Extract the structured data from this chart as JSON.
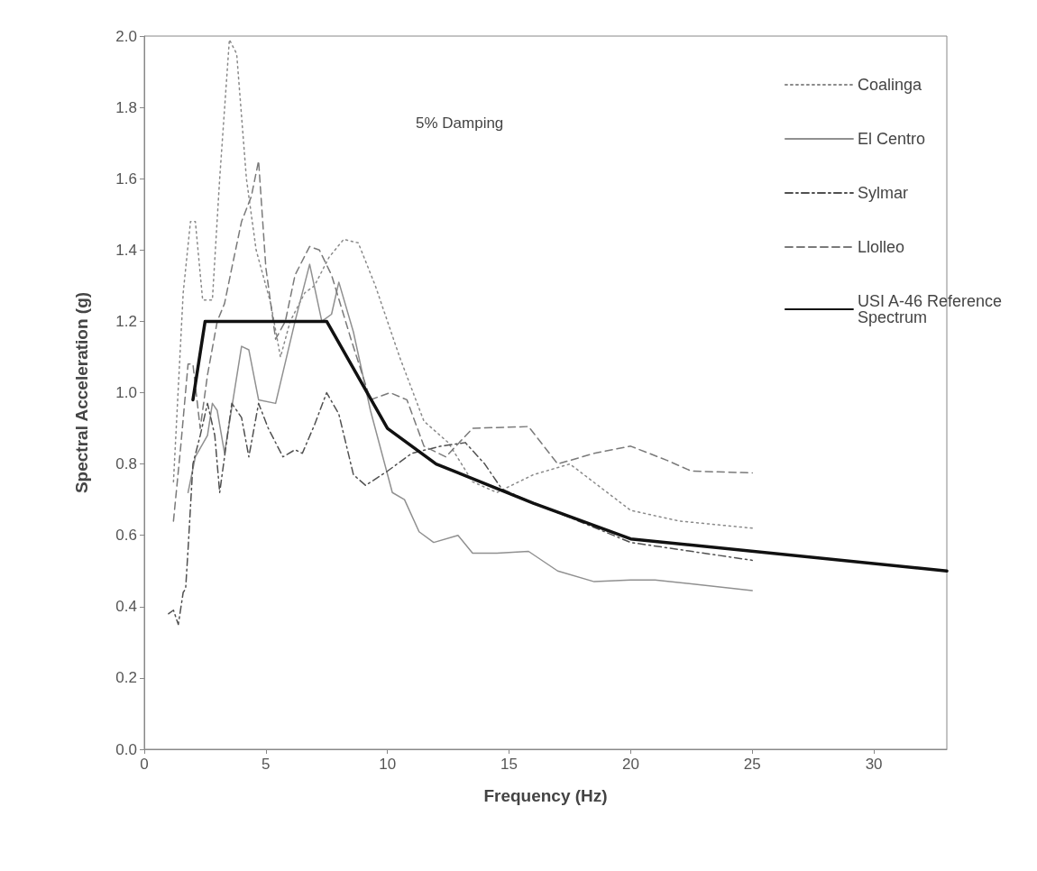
{
  "chart_data": {
    "type": "line",
    "xlabel": "Frequency (Hz)",
    "ylabel": "Spectral Acceleration (g)",
    "annotations": [
      "5% Damping"
    ],
    "xlim": [
      0,
      33
    ],
    "xticks": [
      0,
      5,
      10,
      15,
      20,
      25,
      30
    ],
    "ylim": [
      0,
      2
    ],
    "yticks": [
      {
        "value": 0,
        "label": "0.0"
      },
      {
        "value": 0.2,
        "label": "0.2"
      },
      {
        "value": 0.4,
        "label": "0.4"
      },
      {
        "value": 0.6,
        "label": "0.6"
      },
      {
        "value": 0.8,
        "label": "0.8"
      },
      {
        "value": 1,
        "label": "1.0"
      },
      {
        "value": 1.2,
        "label": "1.2"
      },
      {
        "value": 1.4,
        "label": "1.4"
      },
      {
        "value": 1.6,
        "label": "1.6"
      },
      {
        "value": 1.8,
        "label": "1.8"
      },
      {
        "value": 2,
        "label": "2.0"
      }
    ],
    "grid": false,
    "legend": "top right",
    "marker": "none",
    "series": [
      {
        "name": "Coalinga",
        "color": "#8a8a8a",
        "line_style": "dotted",
        "x": [
          1.2,
          1.6,
          1.9,
          2.1,
          2.4,
          2.8,
          3.1,
          3.5,
          3.8,
          4.2,
          4.6,
          5.2,
          5.6,
          6,
          6.6,
          7,
          7.6,
          8.2,
          8.8,
          9.5,
          10.5,
          11.5,
          12.5,
          13.5,
          14.5,
          16,
          17.5,
          20,
          22,
          25
        ],
        "values": [
          0.75,
          1.28,
          1.48,
          1.48,
          1.26,
          1.26,
          1.6,
          1.99,
          1.95,
          1.6,
          1.4,
          1.25,
          1.1,
          1.2,
          1.28,
          1.3,
          1.38,
          1.43,
          1.42,
          1.3,
          1.1,
          0.92,
          0.86,
          0.75,
          0.72,
          0.77,
          0.8,
          0.67,
          0.64,
          0.62
        ]
      },
      {
        "name": "El Centro",
        "color": "#909090",
        "line_style": "solid",
        "x": [
          1.8,
          2.1,
          2.6,
          2.8,
          3,
          3.3,
          4,
          4.3,
          4.7,
          5.4,
          6.2,
          6.8,
          7.3,
          7.7,
          8,
          8.6,
          9.3,
          10.2,
          10.7,
          11.3,
          11.9,
          12.9,
          13.5,
          14.5,
          15.8,
          17,
          18.5,
          20,
          21,
          25
        ],
        "values": [
          0.72,
          0.82,
          0.88,
          0.97,
          0.95,
          0.83,
          1.13,
          1.12,
          0.98,
          0.97,
          1.2,
          1.36,
          1.2,
          1.22,
          1.31,
          1.17,
          0.95,
          0.72,
          0.7,
          0.61,
          0.58,
          0.6,
          0.55,
          0.55,
          0.555,
          0.5,
          0.47,
          0.475,
          0.475,
          0.445
        ]
      },
      {
        "name": "Sylmar",
        "color": "#505050",
        "line_style": "dashdot",
        "x": [
          1,
          1.2,
          1.4,
          1.6,
          1.7,
          1.8,
          2,
          2.3,
          2.6,
          2.9,
          3.1,
          3.6,
          4,
          4.3,
          4.7,
          5.1,
          5.7,
          6.2,
          6.5,
          7,
          7.5,
          8,
          8.6,
          9.1,
          10,
          11,
          12.2,
          13.2,
          14,
          14.7,
          16,
          17.5,
          20,
          25
        ],
        "values": [
          0.38,
          0.39,
          0.35,
          0.44,
          0.45,
          0.56,
          0.8,
          0.88,
          0.97,
          0.88,
          0.72,
          0.97,
          0.93,
          0.82,
          0.97,
          0.9,
          0.82,
          0.84,
          0.83,
          0.91,
          1,
          0.94,
          0.77,
          0.74,
          0.78,
          0.83,
          0.85,
          0.86,
          0.8,
          0.73,
          0.69,
          0.65,
          0.58,
          0.53
        ]
      },
      {
        "name": "Llolleo",
        "color": "#7a7a7a",
        "line_style": "dashed",
        "x": [
          1.2,
          1.5,
          1.8,
          2,
          2.3,
          2.6,
          3,
          3.3,
          3.6,
          4,
          4.4,
          4.7,
          5,
          5.4,
          5.8,
          6.2,
          6.8,
          7.2,
          7.7,
          8.5,
          9.3,
          10.1,
          10.8,
          11.5,
          12.4,
          13.5,
          15.8,
          17,
          18.5,
          20,
          21.5,
          22.5,
          25
        ],
        "values": [
          0.64,
          0.85,
          1.08,
          1.08,
          0.9,
          1.05,
          1.2,
          1.25,
          1.35,
          1.48,
          1.55,
          1.65,
          1.35,
          1.15,
          1.2,
          1.33,
          1.41,
          1.4,
          1.33,
          1.15,
          0.98,
          1,
          0.98,
          0.85,
          0.82,
          0.9,
          0.905,
          0.8,
          0.83,
          0.85,
          0.81,
          0.78,
          0.775
        ]
      },
      {
        "name": "USI A-46 Reference Spectrum",
        "color": "#111111",
        "line_style": "solid",
        "x": [
          2,
          2.5,
          7.5,
          10,
          12,
          16,
          20,
          33
        ],
        "values": [
          0.98,
          1.2,
          1.2,
          0.9,
          0.8,
          0.69,
          0.59,
          0.5
        ]
      }
    ]
  }
}
